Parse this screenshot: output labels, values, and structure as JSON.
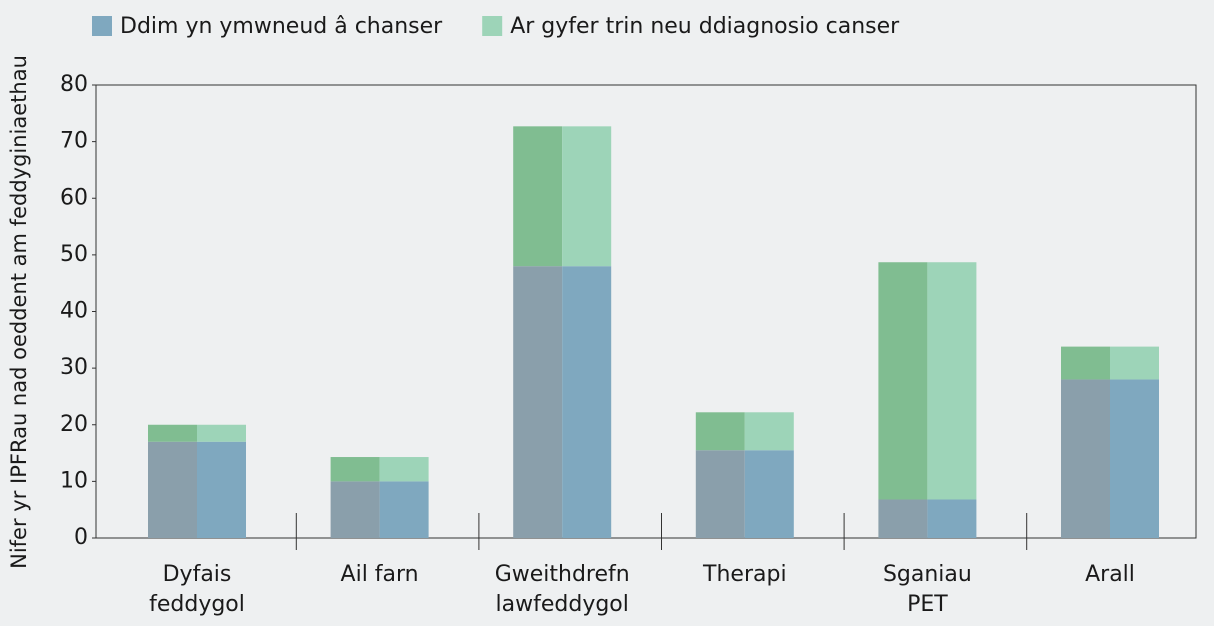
{
  "chart_data": {
    "type": "stacked_bar",
    "y_label": "Nifer yr IPFRau nad oeddent am feddyginiaethau",
    "categories": [
      "Dyfais\nfeddygol",
      "Ail farn",
      "Gweithdrefn\nlawfeddygol",
      "Therapi",
      "Sganiau\nPET",
      "Arall"
    ],
    "series": [
      {
        "name": "Ddim yn ymwneud â chanser",
        "color": "#7fa8bf",
        "shade_color": "#8a9fab",
        "values": [
          17,
          10,
          48,
          15.5,
          6.8,
          28
        ]
      },
      {
        "name": "Ar gyfer trin neu ddiagnosio canser",
        "color": "#9dd4b8",
        "shade_color": "#80bd91",
        "values": [
          3,
          4.3,
          24.7,
          6.7,
          41.9,
          5.8
        ]
      }
    ],
    "ylim": [
      0,
      80
    ],
    "yticks": [
      0,
      10,
      20,
      30,
      40,
      50,
      60,
      70,
      80
    ]
  }
}
